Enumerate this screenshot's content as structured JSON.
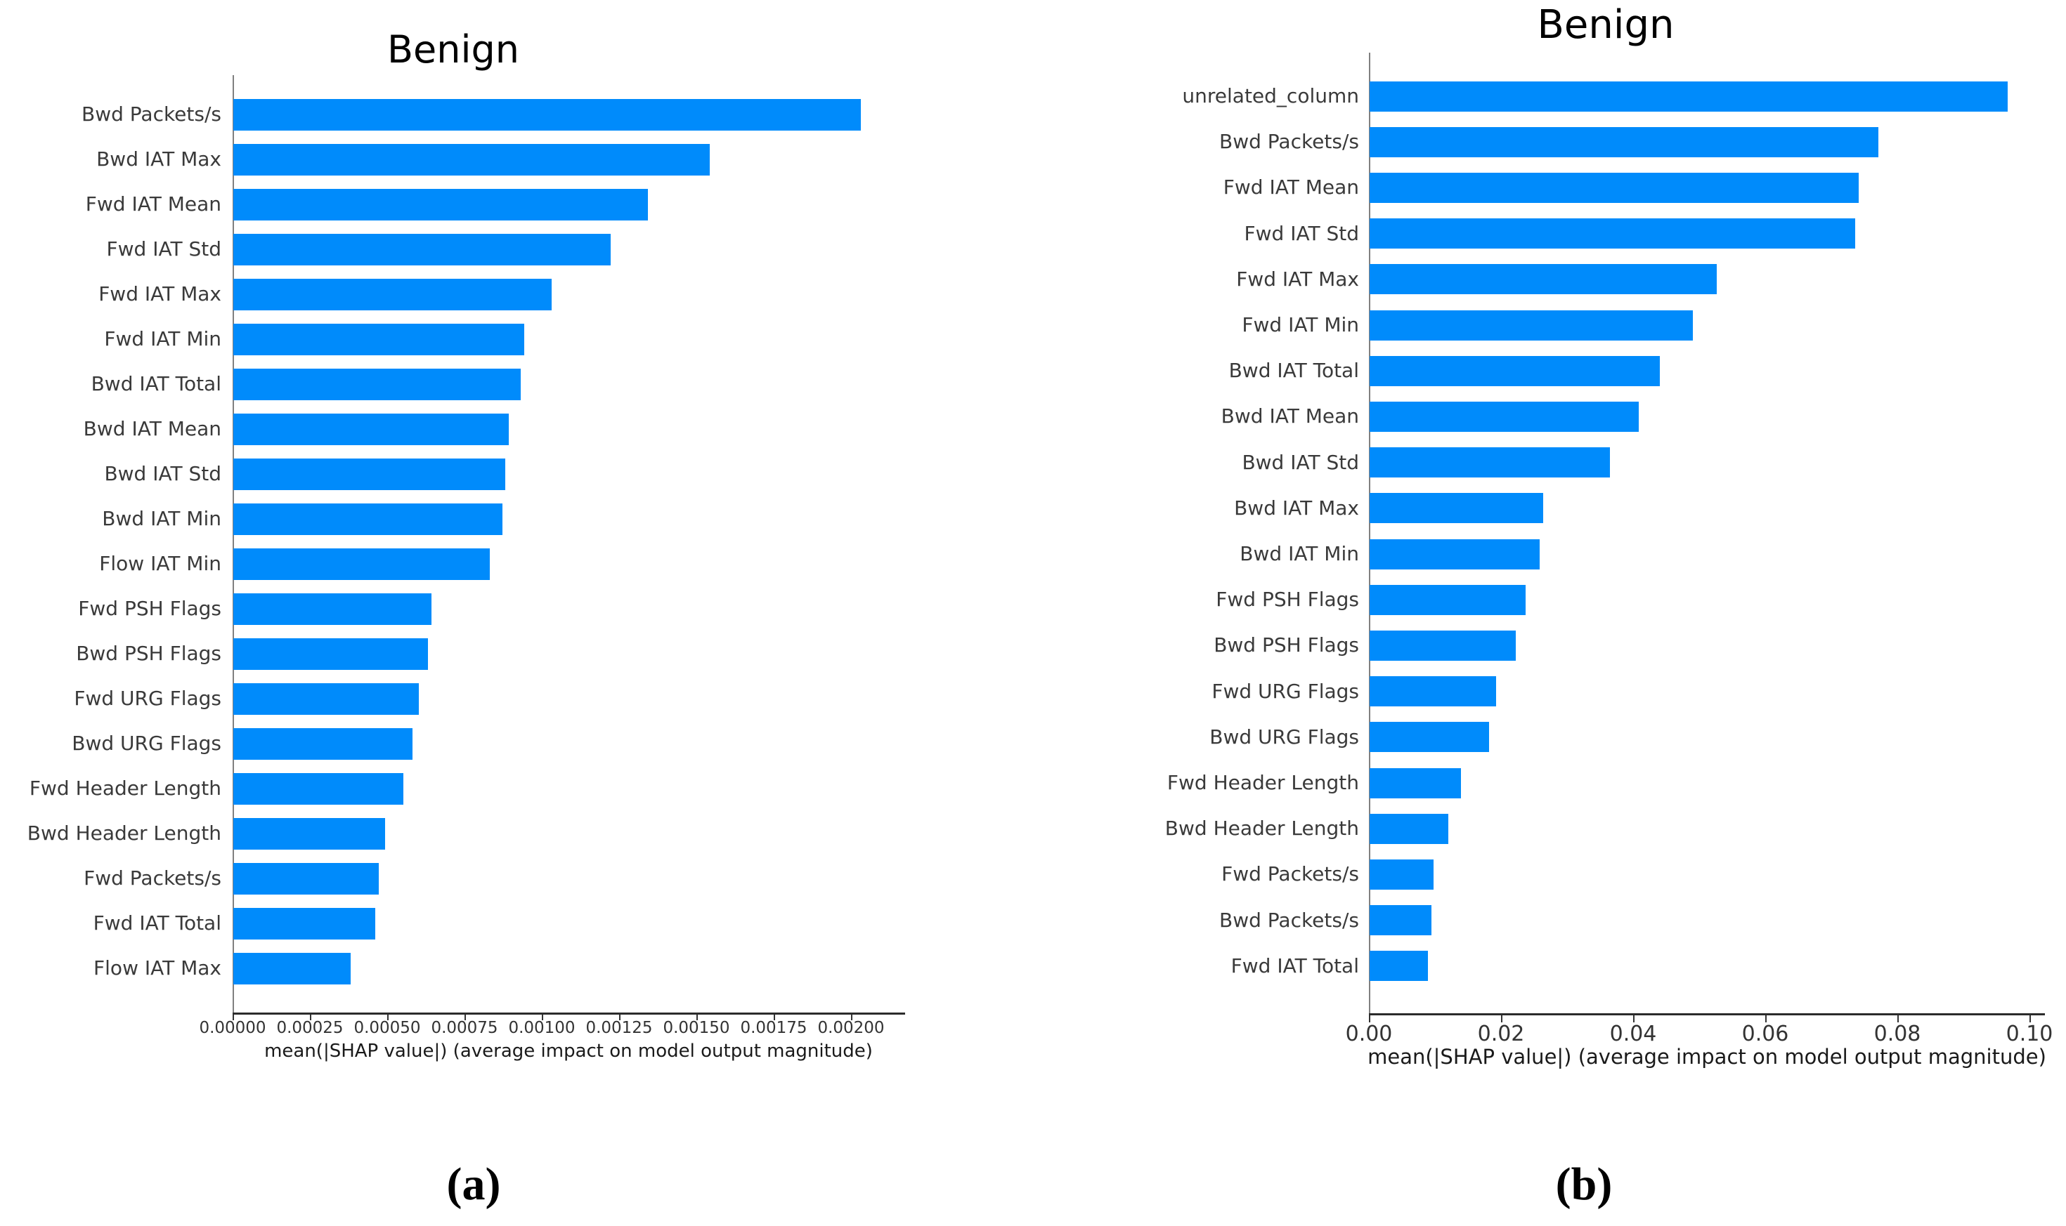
{
  "figure": {
    "caption_a": "(a)",
    "caption_b": "(b)",
    "bar_color": "#008bfb"
  },
  "chart_data": [
    {
      "type": "bar",
      "orientation": "horizontal",
      "panel_label": "(a)",
      "title": "Benign",
      "xlabel": "mean(|SHAP value|) (average impact on model output magnitude)",
      "ylabel": "",
      "legend": "none",
      "grid": false,
      "bar_color": "#008bfb",
      "xlim": [
        0,
        0.002175
      ],
      "x_tick_values": [
        0.0,
        0.00025,
        0.0005,
        0.00075,
        0.001,
        0.00125,
        0.0015,
        0.00175,
        0.002
      ],
      "x_tick_labels": [
        "0.00000",
        "0.00025",
        "0.00050",
        "0.00075",
        "0.00100",
        "0.00125",
        "0.00150",
        "0.00175",
        "0.00200"
      ],
      "categories": [
        "Bwd Packets/s",
        "Bwd IAT Max",
        "Fwd IAT Mean",
        "Fwd IAT Std",
        "Fwd IAT Max",
        "Fwd IAT Min",
        "Bwd IAT Total",
        "Bwd IAT Mean",
        "Bwd IAT Std",
        "Bwd IAT Min",
        "Flow IAT Min",
        "Fwd PSH Flags",
        "Bwd PSH Flags",
        "Fwd URG Flags",
        "Bwd URG Flags",
        "Fwd Header Length",
        "Bwd Header Length",
        "Fwd Packets/s",
        "Fwd IAT Total",
        "Flow IAT Max"
      ],
      "values": [
        0.00203,
        0.00154,
        0.00134,
        0.00122,
        0.00103,
        0.00094,
        0.00093,
        0.00089,
        0.00088,
        0.00087,
        0.00083,
        0.00064,
        0.00063,
        0.0006,
        0.00058,
        0.00055,
        0.00049,
        0.00047,
        0.00046,
        0.00038
      ]
    },
    {
      "type": "bar",
      "orientation": "horizontal",
      "panel_label": "(b)",
      "title": "Benign",
      "xlabel": "mean(|SHAP value|) (average impact on model output magnitude)",
      "ylabel": "",
      "legend": "none",
      "grid": false,
      "bar_color": "#008bfb",
      "xlim": [
        0,
        0.1023
      ],
      "x_tick_values": [
        0.0,
        0.02,
        0.04,
        0.06,
        0.08,
        0.1
      ],
      "x_tick_labels": [
        "0.00",
        "0.02",
        "0.04",
        "0.06",
        "0.08",
        "0.10"
      ],
      "categories": [
        "unrelated_column",
        "Bwd Packets/s",
        "Fwd IAT Mean",
        "Fwd IAT Std",
        "Fwd IAT Max",
        "Fwd IAT Min",
        "Bwd IAT Total",
        "Bwd IAT Mean",
        "Bwd IAT Std",
        "Bwd IAT Max",
        "Bwd IAT Min",
        "Fwd PSH Flags",
        "Bwd PSH Flags",
        "Fwd URG Flags",
        "Bwd URG Flags",
        "Fwd Header Length",
        "Bwd Header Length",
        "Fwd Packets/s",
        "Bwd Packets/s",
        "Fwd IAT Total"
      ],
      "values": [
        0.0966,
        0.077,
        0.074,
        0.0735,
        0.0525,
        0.0489,
        0.0439,
        0.0407,
        0.0364,
        0.0263,
        0.0257,
        0.0236,
        0.0221,
        0.0192,
        0.0181,
        0.0138,
        0.0119,
        0.0097,
        0.0094,
        0.0088
      ]
    }
  ]
}
